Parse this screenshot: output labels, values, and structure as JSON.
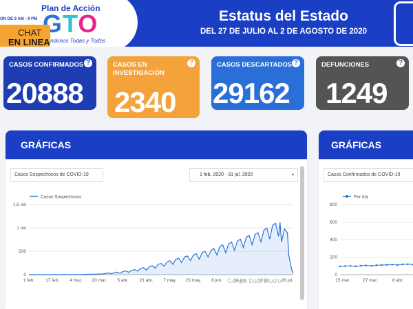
{
  "header": {
    "logo_top": "Plan de Acción",
    "logo_gto": [
      "G",
      "T",
      "O"
    ],
    "logo_sub": "...ándonos Todas y Todos",
    "hours": "ON DE 9 AM - 9 PM",
    "chat_line1": "CHAT",
    "chat_line2": "EN LINEA",
    "title": "Estatus del Estado",
    "subtitle": "DEL 27 DE JULIO AL 2 DE AGOSTO DE 2020"
  },
  "cards": [
    {
      "label": "CASOS CONFIRMADOS",
      "value": "20888",
      "color": "#1f3db2"
    },
    {
      "label": "CASOS EN INVESTIGACIÓN",
      "value": "2340",
      "color": "#f4a23a"
    },
    {
      "label": "CASOS DESCARTADOS",
      "value": "29162",
      "color": "#2a6fd8"
    },
    {
      "label": "DEFUNCIONES",
      "value": "1249",
      "color": "#545454"
    }
  ],
  "help_glyph": "?",
  "panels": [
    {
      "title": "GRÁFICAS",
      "chart_tag": "Casos Sospechosos de COVID-19",
      "date_range": "1 feb. 2020 - 31 jul. 2020",
      "watermark": "Google Data Studio"
    },
    {
      "title": "GRÁFICAS",
      "chart_tag": "Casos Confirmados de COVID-19"
    }
  ],
  "dropdown_caret": "▾",
  "chart_data": [
    {
      "type": "line",
      "series": [
        {
          "name": "Casos Sospechosos",
          "color": "#2a74d8"
        }
      ],
      "x_ticks": [
        "1 feb.",
        "17 feb.",
        "4 mar.",
        "20 mar.",
        "5 abr.",
        "21 abr.",
        "7 may.",
        "23 may.",
        "8 jun.",
        "24 jun.",
        "10 jul.",
        "26 jul."
      ],
      "y_ticks": [
        "0",
        "500",
        "1 mil",
        "1,5 mil"
      ],
      "ylim": [
        0,
        1500
      ],
      "points": [
        [
          0,
          0
        ],
        [
          12,
          0
        ],
        [
          24,
          2
        ],
        [
          34,
          3
        ],
        [
          40,
          8
        ],
        [
          46,
          12
        ],
        [
          50,
          15
        ],
        [
          54,
          35
        ],
        [
          56,
          20
        ],
        [
          58,
          40
        ],
        [
          60,
          55
        ],
        [
          62,
          30
        ],
        [
          64,
          65
        ],
        [
          66,
          80
        ],
        [
          68,
          50
        ],
        [
          70,
          90
        ],
        [
          72,
          110
        ],
        [
          74,
          75
        ],
        [
          76,
          130
        ],
        [
          78,
          150
        ],
        [
          80,
          95
        ],
        [
          82,
          170
        ],
        [
          84,
          190
        ],
        [
          86,
          140
        ],
        [
          88,
          220
        ],
        [
          90,
          240
        ],
        [
          92,
          180
        ],
        [
          94,
          270
        ],
        [
          96,
          300
        ],
        [
          98,
          220
        ],
        [
          100,
          330
        ],
        [
          102,
          350
        ],
        [
          104,
          260
        ],
        [
          106,
          380
        ],
        [
          108,
          400
        ],
        [
          110,
          300
        ],
        [
          112,
          420
        ],
        [
          114,
          450
        ],
        [
          116,
          330
        ],
        [
          118,
          470
        ],
        [
          120,
          500
        ],
        [
          122,
          380
        ],
        [
          124,
          520
        ],
        [
          126,
          560
        ],
        [
          128,
          420
        ],
        [
          130,
          600
        ],
        [
          132,
          640
        ],
        [
          134,
          470
        ],
        [
          136,
          660
        ],
        [
          138,
          700
        ],
        [
          140,
          520
        ],
        [
          142,
          720
        ],
        [
          144,
          760
        ],
        [
          146,
          580
        ],
        [
          148,
          800
        ],
        [
          150,
          840
        ],
        [
          152,
          640
        ],
        [
          154,
          860
        ],
        [
          156,
          900
        ],
        [
          158,
          700
        ],
        [
          160,
          950
        ],
        [
          162,
          1000
        ],
        [
          164,
          760
        ],
        [
          166,
          1060
        ],
        [
          168,
          1100
        ],
        [
          170,
          820
        ],
        [
          171,
          1120
        ],
        [
          172,
          700
        ],
        [
          174,
          980
        ],
        [
          176,
          900
        ],
        [
          177,
          420
        ],
        [
          178,
          250
        ],
        [
          179,
          100
        ],
        [
          180,
          40
        ]
      ]
    },
    {
      "type": "line",
      "series": [
        {
          "name": "Por día",
          "color": "#2a74d8"
        }
      ],
      "x_ticks": [
        "15 mar.",
        "27 mar.",
        "8 abr."
      ],
      "y_ticks": [
        "0",
        "200",
        "400",
        "600",
        "800"
      ],
      "ylim": [
        0,
        800
      ],
      "points": [
        [
          0,
          95
        ],
        [
          8,
          98
        ],
        [
          16,
          100
        ],
        [
          24,
          96
        ],
        [
          32,
          102
        ],
        [
          40,
          105
        ],
        [
          48,
          100
        ],
        [
          56,
          108
        ],
        [
          64,
          110
        ],
        [
          72,
          112
        ],
        [
          80,
          115
        ],
        [
          88,
          110
        ],
        [
          96,
          118
        ],
        [
          104,
          120
        ],
        [
          112,
          115
        ]
      ]
    }
  ]
}
